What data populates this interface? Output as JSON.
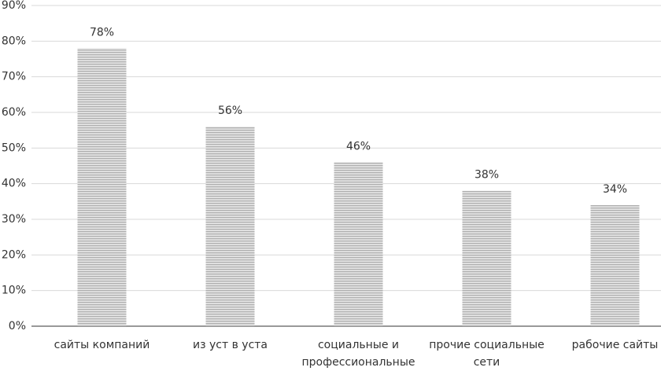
{
  "chart_data": {
    "type": "bar",
    "categories": [
      "сайты компаний",
      "из уст в уста",
      "социальные и профессиональные",
      "прочие социальные сети",
      "рабочие сайты"
    ],
    "values": [
      78,
      56,
      46,
      38,
      34
    ],
    "value_labels": [
      "78%",
      "56%",
      "46%",
      "38%",
      "34%"
    ],
    "color": "#b0b0b0",
    "ylim": [
      0,
      90
    ],
    "yticks": [
      {
        "value": 0,
        "label": "0%"
      },
      {
        "value": 10,
        "label": "10%"
      },
      {
        "value": 20,
        "label": "20%"
      },
      {
        "value": 30,
        "label": "30%"
      },
      {
        "value": 40,
        "label": "40%"
      },
      {
        "value": 50,
        "label": "50%"
      },
      {
        "value": 60,
        "label": "60%"
      },
      {
        "value": 70,
        "label": "70%"
      },
      {
        "value": 80,
        "label": "80%"
      },
      {
        "value": 90,
        "label": "90%"
      }
    ],
    "grid": true
  }
}
